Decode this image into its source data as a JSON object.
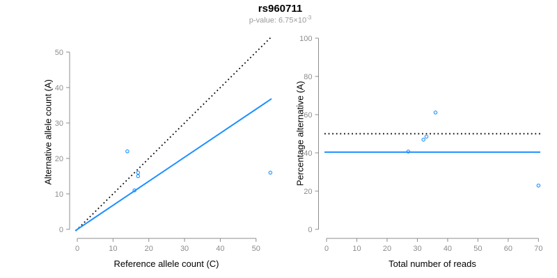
{
  "header": {
    "title": "rs960711",
    "pvalue_text": "p-value: 6.75×10",
    "pvalue_exponent": "-3"
  },
  "colors": {
    "accent_blue": "#1E90FF",
    "dotted_line": "#000000",
    "axis": "#8c8c8c",
    "tick_label": "#8c8c8c",
    "axis_title": "#000000",
    "title": "#000000",
    "subtitle": "#999999",
    "background": "#ffffff"
  },
  "chart_data": [
    {
      "type": "scatter",
      "panel": "left",
      "xlabel": "Reference allele count (C)",
      "ylabel": "Alternative allele count (A)",
      "xlim": [
        -2.34,
        54.33
      ],
      "ylim": [
        -0.39,
        54.3
      ],
      "xticks": [
        0,
        10,
        20,
        30,
        40,
        50
      ],
      "yticks": [
        0,
        10,
        20,
        30,
        40,
        50
      ],
      "points": [
        [
          14,
          22
        ],
        [
          17,
          16
        ],
        [
          17,
          15
        ],
        [
          16,
          11
        ],
        [
          54,
          16
        ]
      ],
      "lines": [
        {
          "name": "identity-line",
          "slope": 1,
          "intercept": 0,
          "style": "dotted",
          "color": "#000000"
        },
        {
          "name": "fit-line",
          "slope": 0.678,
          "intercept": 0,
          "style": "solid",
          "color": "#1E90FF"
        }
      ],
      "point_shape": "open-circle",
      "grid": false
    },
    {
      "type": "scatter",
      "panel": "right",
      "xlabel": "Total number of reads",
      "ylabel": "Percentage alternative (A)",
      "xlim": [
        -0.69,
        70.6
      ],
      "ylim": [
        -0.73,
        100.7
      ],
      "xticks": [
        0,
        10,
        20,
        30,
        40,
        50,
        60,
        70
      ],
      "yticks": [
        0,
        20,
        40,
        60,
        80,
        100
      ],
      "points": [
        [
          36,
          61.1
        ],
        [
          33,
          48.5
        ],
        [
          32,
          46.9
        ],
        [
          27,
          40.7
        ],
        [
          70,
          22.9
        ]
      ],
      "lines": [
        {
          "name": "expected-50pct-line",
          "slope": 0,
          "intercept": 50,
          "style": "dotted",
          "color": "#000000"
        },
        {
          "name": "fit-line",
          "slope": 0,
          "intercept": 40.4,
          "style": "solid",
          "color": "#1E90FF"
        }
      ],
      "point_shape": "open-circle",
      "grid": false
    }
  ]
}
